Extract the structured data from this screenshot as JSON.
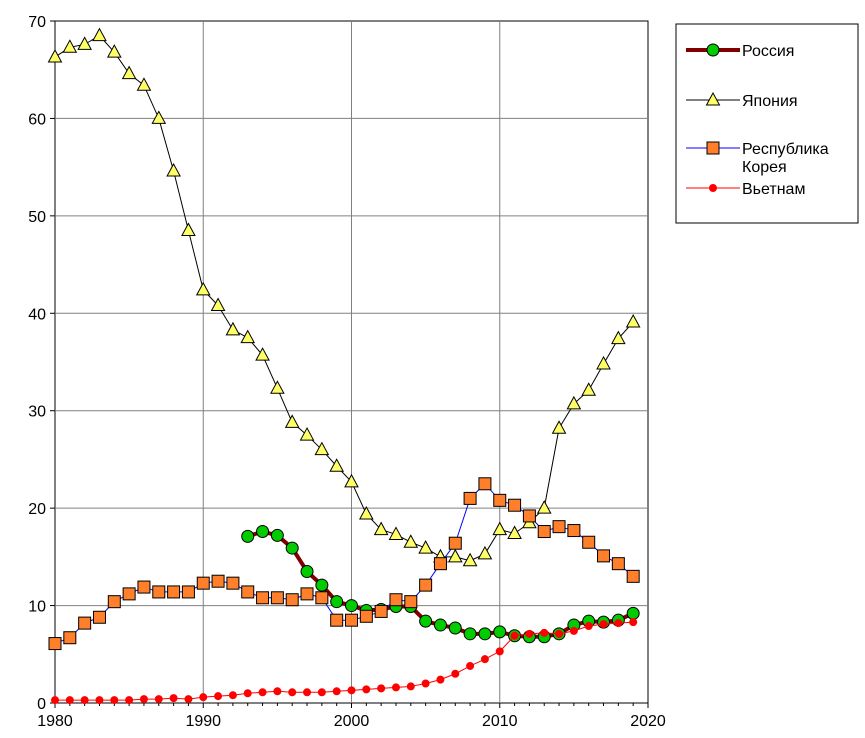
{
  "chart_data": {
    "type": "line",
    "title": "",
    "xlabel": "",
    "ylabel": "",
    "xlim": [
      1980,
      2020
    ],
    "ylim": [
      0,
      70
    ],
    "x_ticks": [
      "1980",
      "1990",
      "2000",
      "2010",
      "2020"
    ],
    "y_ticks": [
      "0",
      "10",
      "20",
      "30",
      "40",
      "50",
      "60",
      "70"
    ],
    "grid": true,
    "legend_position": "top-right",
    "series": [
      {
        "name": "Россия",
        "color": "#800000",
        "marker": "circle",
        "marker_color": "#00cc00",
        "x": [
          1993,
          1994,
          1995,
          1996,
          1997,
          1998,
          1999,
          2000,
          2001,
          2002,
          2003,
          2004,
          2005,
          2006,
          2007,
          2008,
          2009,
          2010,
          2011,
          2012,
          2013,
          2014,
          2015,
          2016,
          2017,
          2018,
          2019
        ],
        "y": [
          17.1,
          17.6,
          17.2,
          15.9,
          13.5,
          12.1,
          10.4,
          10.0,
          9.5,
          9.6,
          9.9,
          9.9,
          8.4,
          8.0,
          7.7,
          7.1,
          7.1,
          7.3,
          6.9,
          6.8,
          6.8,
          7.1,
          8.0,
          8.4,
          8.3,
          8.5,
          9.2
        ]
      },
      {
        "name": "Япония",
        "color": "#000000",
        "marker": "triangle",
        "marker_color": "#ffff66",
        "x": [
          1980,
          1981,
          1982,
          1983,
          1984,
          1985,
          1986,
          1987,
          1988,
          1989,
          1990,
          1991,
          1992,
          1993,
          1994,
          1995,
          1996,
          1997,
          1998,
          1999,
          2000,
          2001,
          2002,
          2003,
          2004,
          2005,
          2006,
          2007,
          2008,
          2009,
          2010,
          2011,
          2012,
          2013,
          2014,
          2015,
          2016,
          2017,
          2018,
          2019
        ],
        "y": [
          66.3,
          67.3,
          67.6,
          68.5,
          66.8,
          64.6,
          63.4,
          60.0,
          54.6,
          48.5,
          42.4,
          40.8,
          38.3,
          37.5,
          35.7,
          32.3,
          28.8,
          27.5,
          26.0,
          24.3,
          22.7,
          19.4,
          17.8,
          17.3,
          16.5,
          15.9,
          15.0,
          15.0,
          14.6,
          15.3,
          17.8,
          17.4,
          18.5,
          20.0,
          28.2,
          30.7,
          32.1,
          34.8,
          37.4,
          39.1
        ]
      },
      {
        "name": "Республика Корея",
        "color": "#0000ff",
        "marker": "square",
        "marker_color": "#ff7f2a",
        "x": [
          1980,
          1981,
          1982,
          1983,
          1984,
          1985,
          1986,
          1987,
          1988,
          1989,
          1990,
          1991,
          1992,
          1993,
          1994,
          1995,
          1996,
          1997,
          1998,
          1999,
          2000,
          2001,
          2002,
          2003,
          2004,
          2005,
          2006,
          2007,
          2008,
          2009,
          2010,
          2011,
          2012,
          2013,
          2014,
          2015,
          2016,
          2017,
          2018,
          2019
        ],
        "y": [
          6.1,
          6.7,
          8.2,
          8.8,
          10.4,
          11.2,
          11.9,
          11.4,
          11.4,
          11.4,
          12.3,
          12.5,
          12.3,
          11.4,
          10.8,
          10.8,
          10.6,
          11.2,
          10.8,
          8.5,
          8.5,
          8.9,
          9.4,
          10.6,
          10.4,
          12.1,
          14.3,
          16.4,
          21.0,
          22.5,
          20.8,
          20.3,
          19.2,
          17.6,
          18.1,
          17.7,
          16.5,
          15.1,
          14.3,
          13.0
        ]
      },
      {
        "name": "Вьетнам",
        "color": "#ff0000",
        "marker": "dot",
        "marker_color": "#ff0000",
        "x": [
          1980,
          1981,
          1982,
          1983,
          1984,
          1985,
          1986,
          1987,
          1988,
          1989,
          1990,
          1991,
          1992,
          1993,
          1994,
          1995,
          1996,
          1997,
          1998,
          1999,
          2000,
          2001,
          2002,
          2003,
          2004,
          2005,
          2006,
          2007,
          2008,
          2009,
          2010,
          2011,
          2012,
          2013,
          2014,
          2015,
          2016,
          2017,
          2018,
          2019
        ],
        "y": [
          0.3,
          0.3,
          0.3,
          0.3,
          0.3,
          0.3,
          0.4,
          0.4,
          0.5,
          0.4,
          0.6,
          0.7,
          0.8,
          1.0,
          1.1,
          1.2,
          1.1,
          1.1,
          1.1,
          1.2,
          1.3,
          1.4,
          1.5,
          1.6,
          1.7,
          2.0,
          2.4,
          3.0,
          3.8,
          4.5,
          5.3,
          6.9,
          7.1,
          7.2,
          7.1,
          7.4,
          7.9,
          8.1,
          8.2,
          8.3
        ]
      }
    ]
  },
  "legend": {
    "items": [
      {
        "label_lines": [
          "Россия"
        ]
      },
      {
        "label_lines": [
          "Япония"
        ]
      },
      {
        "label_lines": [
          "Республика",
          "Корея"
        ]
      },
      {
        "label_lines": [
          "Вьетнам"
        ]
      }
    ]
  }
}
